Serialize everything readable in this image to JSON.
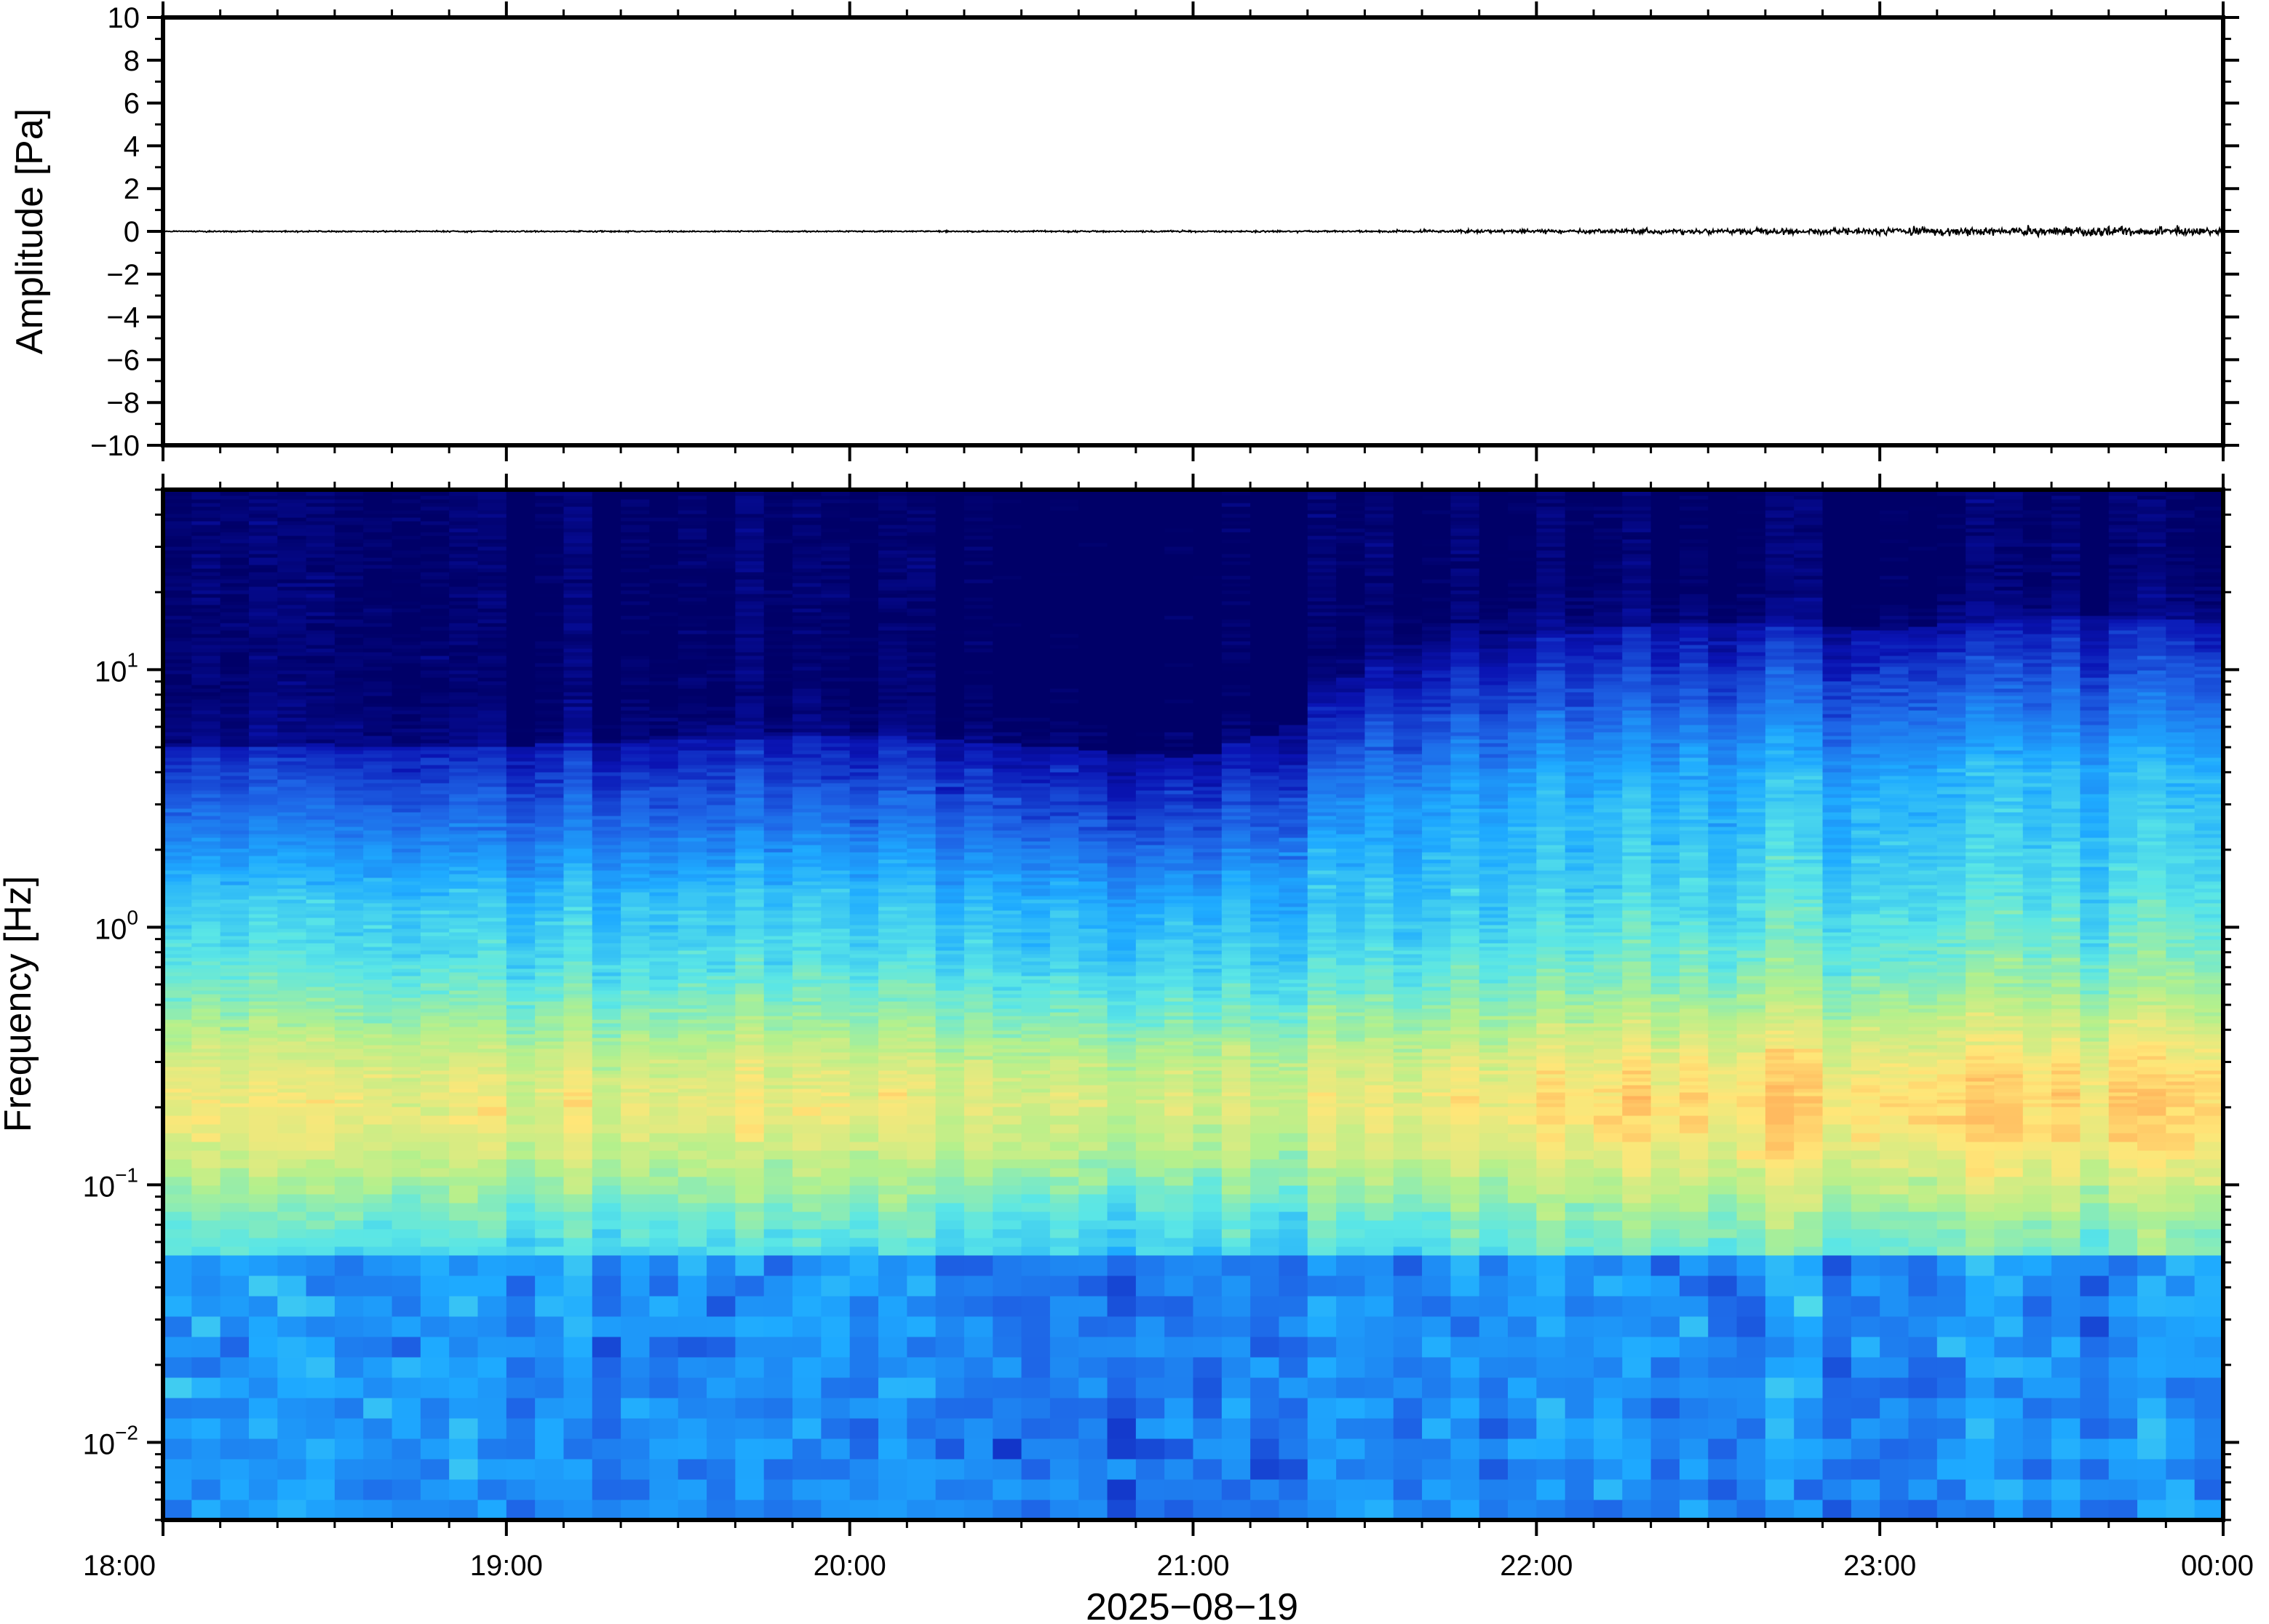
{
  "chart_data": [
    {
      "type": "line",
      "ylabel": "Amplitude [Pa]",
      "ylim": [
        -10,
        10
      ],
      "y_ticks": [
        "10",
        "8",
        "6",
        "4",
        "2",
        "0",
        "−2",
        "−4",
        "−6",
        "−8",
        "−10"
      ],
      "y_tick_values": [
        10,
        8,
        6,
        4,
        2,
        0,
        -2,
        -4,
        -6,
        -8,
        -10
      ],
      "x_range_hours": [
        18,
        24
      ],
      "series": [
        {
          "color": "#000000",
          "x_hours": [
            18,
            19,
            20,
            21,
            21.5,
            22,
            22.5,
            23,
            23.5,
            24
          ],
          "amplitude_envelope": [
            0.05,
            0.05,
            0.05,
            0.06,
            0.07,
            0.15,
            0.22,
            0.25,
            0.35,
            0.3
          ]
        }
      ]
    },
    {
      "type": "heatmap",
      "ylabel": "Frequency [Hz]",
      "y_scale": "log",
      "ylim": [
        0.005,
        50
      ],
      "y_ticks": [
        {
          "value": 10,
          "base": "10",
          "exp": "1"
        },
        {
          "value": 1,
          "base": "10",
          "exp": "0"
        },
        {
          "value": 0.1,
          "base": "10",
          "exp": "−1"
        },
        {
          "value": 0.01,
          "base": "10",
          "exp": "−2"
        }
      ],
      "x_range_hours": [
        18,
        24
      ],
      "x_ticks": [
        "18:00",
        "19:00",
        "20:00",
        "21:00",
        "22:00",
        "23:00",
        "00:00"
      ],
      "x_tick_values": [
        18,
        19,
        20,
        21,
        22,
        23,
        24
      ],
      "xlabel": "2025−08−19",
      "colormap": [
        "#000068",
        "#0a14b4",
        "#1e64e6",
        "#1eaaff",
        "#5ae6e6",
        "#b4f08c",
        "#ffe678",
        "#ffa050"
      ],
      "energy_front": {
        "x_hours": [
          18,
          19,
          20,
          21,
          21.3,
          21.6,
          22,
          22.5,
          23,
          23.5,
          24
        ],
        "noise_ceiling_hz": [
          5,
          5,
          5.5,
          4.5,
          6,
          12,
          14,
          15,
          14,
          16,
          15
        ]
      },
      "microseism_peak_hz": 0.2
    }
  ]
}
